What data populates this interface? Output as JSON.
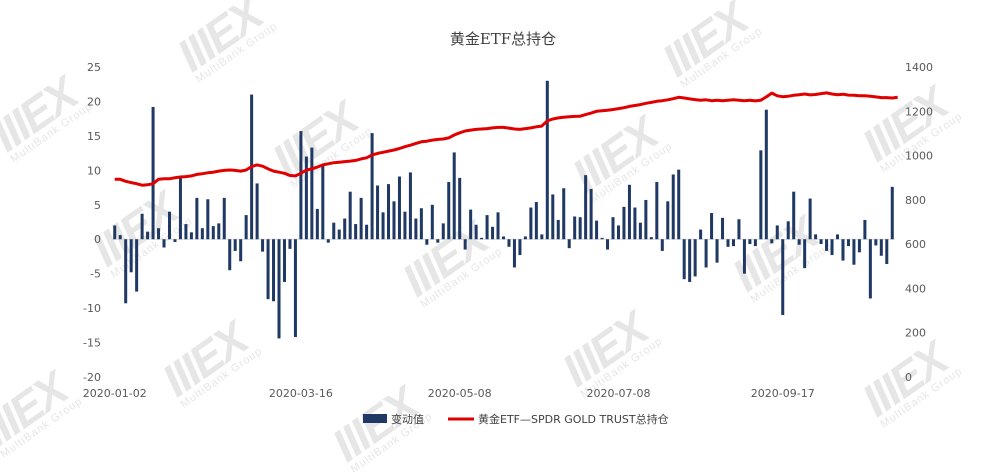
{
  "title": "黄金ETF总持仓",
  "watermark": "IIIEX",
  "colors": {
    "bar": "#1f3864",
    "line": "#e00000",
    "axis_text": "#595959",
    "title": "#404040"
  },
  "chart_data": {
    "type": "bar+line",
    "title": "黄金ETF总持仓",
    "legend_position": "bottom",
    "x_tick_labels": [
      "2020-01-02",
      "2020-03-16",
      "2020-05-08",
      "2020-07-08",
      "2020-09-17"
    ],
    "y_left": {
      "range": [
        -20,
        25
      ],
      "ticks": [
        -20,
        -15,
        -10,
        -5,
        0,
        5,
        10,
        15,
        20,
        25
      ]
    },
    "y_right": {
      "range": [
        0,
        1400
      ],
      "ticks": [
        0,
        200,
        400,
        600,
        800,
        1000,
        1200,
        1400
      ]
    },
    "series": [
      {
        "name": "变动值",
        "type": "bar",
        "axis": "left",
        "values": [
          2.0,
          0.6,
          -9.3,
          -4.8,
          -7.6,
          3.7,
          1.1,
          19.2,
          1.6,
          -1.2,
          4.0,
          -0.4,
          9.2,
          2.2,
          1.0,
          6.0,
          1.6,
          5.8,
          1.9,
          2.3,
          6.0,
          -4.5,
          -1.7,
          -3.2,
          3.5,
          21.0,
          8.1,
          -1.8,
          -8.7,
          -9.0,
          -14.4,
          -6.2,
          -1.4,
          -14.2,
          15.7,
          12.0,
          13.3,
          4.4,
          10.9,
          -0.5,
          2.4,
          1.4,
          3.0,
          6.9,
          2.2,
          6.0,
          2.1,
          15.4,
          7.8,
          3.9,
          8.0,
          5.5,
          9.1,
          4.0,
          9.7,
          3.0,
          4.5,
          -0.8,
          5.0,
          -0.5,
          2.3,
          8.3,
          12.6,
          8.9,
          -1.5,
          4.3,
          2.1,
          0.2,
          3.5,
          1.8,
          3.9,
          0.4,
          -1.1,
          -4.1,
          -2.3,
          0.4,
          4.6,
          5.4,
          0.7,
          23.0,
          6.5,
          2.8,
          7.4,
          -1.3,
          3.3,
          3.2,
          9.3,
          7.3,
          2.7,
          0.2,
          -1.5,
          3.2,
          2.0,
          4.7,
          7.9,
          4.6,
          2.4,
          5.7,
          0.3,
          8.3,
          -1.7,
          5.5,
          9.4,
          10.1,
          -5.8,
          -6.2,
          -5.4,
          1.4,
          -4.1,
          3.8,
          -3.4,
          3.1,
          -1.1,
          -1.0,
          2.9,
          -5.0,
          -0.7,
          -1.0,
          12.9,
          18.8,
          -0.6,
          2.0,
          -11.0,
          2.6,
          6.9,
          -0.8,
          -4.2,
          5.9,
          0.7,
          -0.7,
          -1.7,
          -2.3,
          0.7,
          -3.1,
          -1.0,
          -3.7,
          -1.9,
          2.8,
          -8.6,
          -0.9,
          -2.4,
          -3.6,
          7.6
        ]
      },
      {
        "name": "黄金ETF—SPDR GOLD TRUST总持仓",
        "type": "line",
        "axis": "right",
        "values": [
          893,
          893,
          884,
          878,
          873,
          866,
          868,
          873,
          893,
          895,
          895,
          900,
          903,
          905,
          908,
          915,
          918,
          922,
          925,
          930,
          933,
          935,
          933,
          930,
          935,
          950,
          958,
          952,
          940,
          930,
          925,
          920,
          910,
          908,
          920,
          935,
          940,
          948,
          958,
          963,
          968,
          970,
          973,
          975,
          978,
          985,
          990,
          1003,
          1010,
          1015,
          1020,
          1025,
          1032,
          1040,
          1047,
          1055,
          1062,
          1065,
          1070,
          1073,
          1075,
          1080,
          1093,
          1103,
          1111,
          1115,
          1118,
          1120,
          1122,
          1125,
          1127,
          1127,
          1124,
          1120,
          1118,
          1122,
          1125,
          1130,
          1133,
          1157,
          1165,
          1170,
          1173,
          1175,
          1177,
          1178,
          1185,
          1192,
          1200,
          1202,
          1205,
          1208,
          1212,
          1216,
          1222,
          1226,
          1230,
          1236,
          1240,
          1245,
          1248,
          1252,
          1257,
          1263,
          1260,
          1256,
          1253,
          1250,
          1252,
          1248,
          1250,
          1248,
          1250,
          1252,
          1250,
          1248,
          1250,
          1247,
          1250,
          1265,
          1282,
          1270,
          1266,
          1268,
          1272,
          1275,
          1278,
          1274,
          1276,
          1280,
          1283,
          1278,
          1275,
          1277,
          1273,
          1272,
          1270,
          1270,
          1268,
          1265,
          1262,
          1262,
          1260,
          1263
        ]
      }
    ]
  }
}
